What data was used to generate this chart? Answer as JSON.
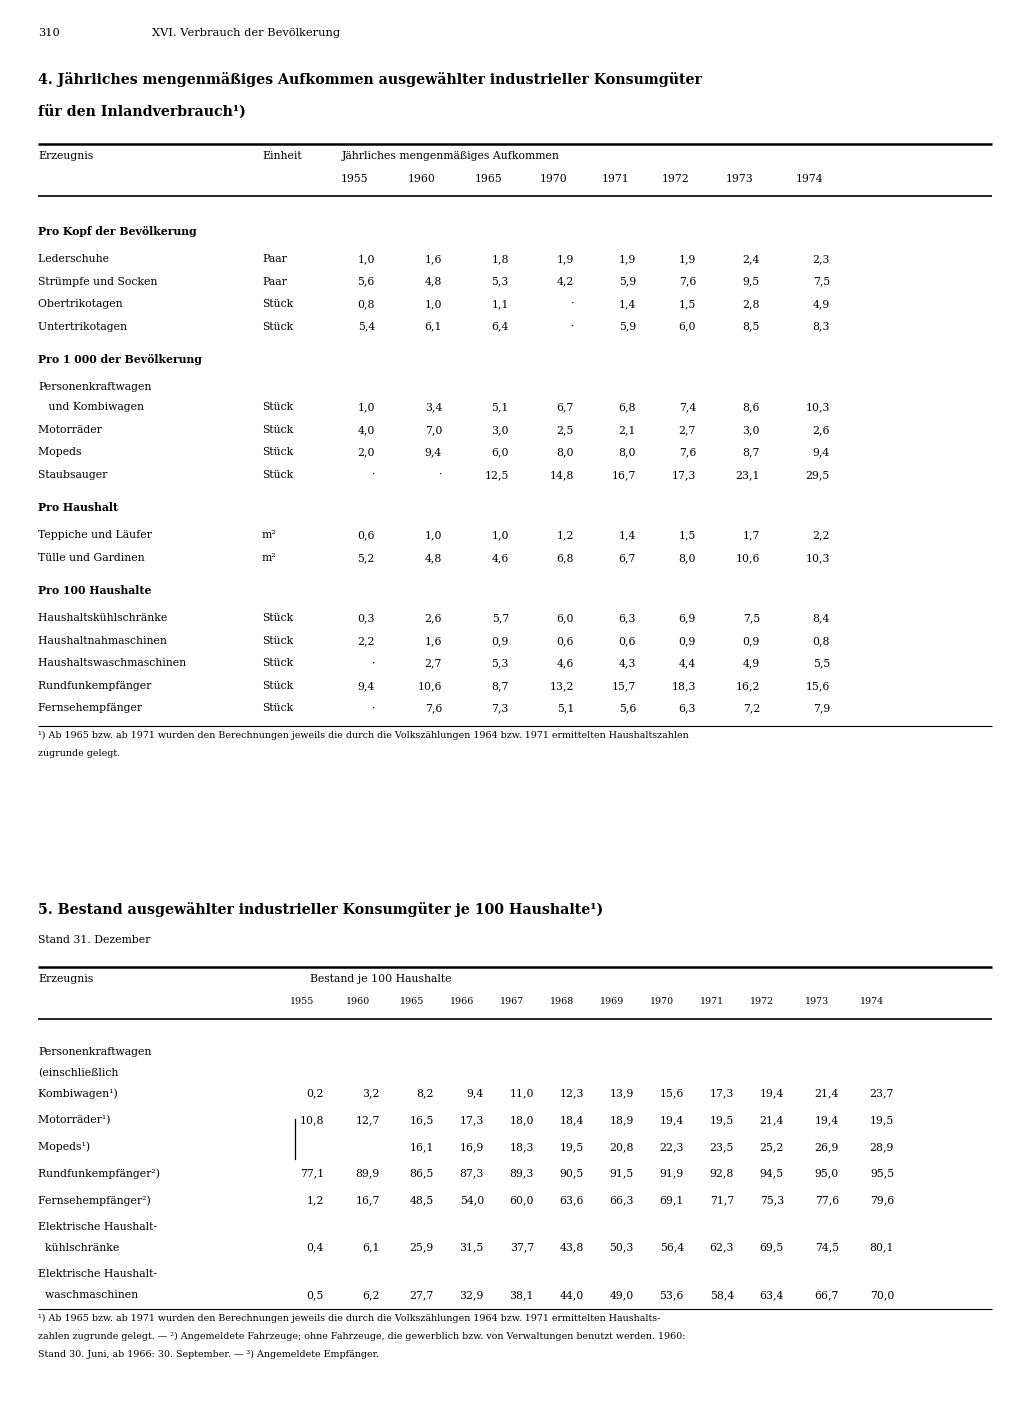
{
  "page_number": "310",
  "page_header": "XVI. Verbrauch der Bevölkerung",
  "section4_title_line1": "4. Jährliches mengenmäßiges Aufkommen ausgewählter industrieller Konsumgüter",
  "section4_title_line2": "für den Inlandverbrauch¹)",
  "section4_col_header_left": "Erzeugnis",
  "section4_col_header_unit": "Einheit",
  "section4_col_header_span": "Jährliches mengenmäßiges Aufkommen",
  "section4_years": [
    "1955",
    "1960",
    "1965",
    "1970",
    "1971",
    "1972",
    "1973",
    "1974"
  ],
  "section4_groups": [
    {
      "group_title": "Pro Kopf der Bevölkerung",
      "rows": [
        {
          "name": "Lederschuhe               ",
          "dots": true,
          "unit": "Paar",
          "values": [
            "1,0",
            "1,6",
            "1,8",
            "1,9",
            "1,9",
            "1,9",
            "2,4",
            "2,3"
          ]
        },
        {
          "name": "Strümpfe und Socken       ",
          "dots": true,
          "unit": "Paar",
          "values": [
            "5,6",
            "4,8",
            "5,3",
            "4,2",
            "5,9",
            "7,6",
            "9,5",
            "7,5"
          ]
        },
        {
          "name": "Obertrikotagen           ",
          "dots": true,
          "unit": "Stück",
          "values": [
            "0,8",
            "1,0",
            "1,1",
            "·",
            "1,4",
            "1,5",
            "2,8",
            "4,9"
          ]
        },
        {
          "name": "Untertrikotagen          ",
          "dots": true,
          "unit": "Stück",
          "values": [
            "5,4",
            "6,1",
            "6,4",
            "·",
            "5,9",
            "6,0",
            "8,5",
            "8,3"
          ]
        }
      ]
    },
    {
      "group_title": "Pro 1 000 der Bevölkerung",
      "rows": [
        {
          "name": "Personenkraftwagen",
          "dots": false,
          "unit": "",
          "values": [
            "",
            "",
            "",
            "",
            "",
            "",
            "",
            ""
          ],
          "multiline_cont": "   und Kombiwagen         ",
          "unit_cont": "Stück",
          "values_cont": [
            "1,0",
            "3,4",
            "5,1",
            "6,7",
            "6,8",
            "7,4",
            "8,6",
            "10,3"
          ]
        },
        {
          "name": "Motorräder                ",
          "dots": true,
          "unit": "Stück",
          "values": [
            "4,0",
            "7,0",
            "3,0",
            "2,5",
            "2,1",
            "2,7",
            "3,0",
            "2,6"
          ]
        },
        {
          "name": "Mopeds                   ",
          "dots": true,
          "unit": "Stück",
          "values": [
            "2,0",
            "9,4",
            "6,0",
            "8,0",
            "8,0",
            "7,6",
            "8,7",
            "9,4"
          ]
        },
        {
          "name": "Staubsauger             ",
          "dots": true,
          "unit": "Stück",
          "values": [
            "·",
            "·",
            "12,5",
            "14,8",
            "16,7",
            "17,3",
            "23,1",
            "29,5"
          ]
        }
      ]
    },
    {
      "group_title": "Pro Haushalt",
      "rows": [
        {
          "name": "Teppiche und Läufer       ",
          "dots": true,
          "unit": "m²",
          "values": [
            "0,6",
            "1,0",
            "1,0",
            "1,2",
            "1,4",
            "1,5",
            "1,7",
            "2,2"
          ]
        },
        {
          "name": "Tülle und Gardinen        ",
          "dots": true,
          "unit": "m²",
          "values": [
            "5,2",
            "4,8",
            "4,6",
            "6,8",
            "6,7",
            "8,0",
            "10,6",
            "10,3"
          ]
        }
      ]
    },
    {
      "group_title": "Pro 100 Haushalte",
      "rows": [
        {
          "name": "Haushaltskühlschränke     ",
          "dots": true,
          "unit": "Stück",
          "values": [
            "0,3",
            "2,6",
            "5,7",
            "6,0",
            "6,3",
            "6,9",
            "7,5",
            "8,4"
          ]
        },
        {
          "name": "Haushaltnahmaschinen     ",
          "dots": true,
          "unit": "Stück",
          "values": [
            "2,2",
            "1,6",
            "0,9",
            "0,6",
            "0,6",
            "0,9",
            "0,9",
            "0,8"
          ]
        },
        {
          "name": "Haushaltswaschmaschinen  ",
          "dots": true,
          "unit": "Stück",
          "values": [
            "·",
            "2,7",
            "5,3",
            "4,6",
            "4,3",
            "4,4",
            "4,9",
            "5,5"
          ]
        },
        {
          "name": "Rundfunkempfänger        ",
          "dots": true,
          "unit": "Stück",
          "values": [
            "9,4",
            "10,6",
            "8,7",
            "13,2",
            "15,7",
            "18,3",
            "16,2",
            "15,6"
          ]
        },
        {
          "name": "Fernsehempfänger         ",
          "dots": true,
          "unit": "Stück",
          "values": [
            "·",
            "7,6",
            "7,3",
            "5,1",
            "5,6",
            "6,3",
            "7,2",
            "7,9"
          ]
        }
      ]
    }
  ],
  "section4_footnote_line1": "¹) Ab 1965 bzw. ab 1971 wurden den Berechnungen jeweils die durch die Volkszählungen 1964 bzw. 1971 ermittelten Haushaltszahlen",
  "section4_footnote_line2": "zugrunde gelegt.",
  "section5_title": "5. Bestand ausgewählter industrieller Konsumgüter je 100 Haushalte¹)",
  "section5_subtitle": "Stand 31. Dezember",
  "section5_col_header_left": "Erzeugnis",
  "section5_col_header_span": "Bestand je 100 Haushalte",
  "section5_years": [
    "1955",
    "1960",
    "1965",
    "1966",
    "1967",
    "1968",
    "1969",
    "1970",
    "1971",
    "1972",
    "1973",
    "1974"
  ],
  "section5_rows": [
    {
      "lines": [
        "Personenkraftwagen",
        "(einschließlich",
        "Kombiwagen¹)          "
      ],
      "values": [
        "0,2",
        "3,2",
        "8,2",
        "9,4",
        "11,0",
        "12,3",
        "13,9",
        "15,6",
        "17,3",
        "19,4",
        "21,4",
        "23,7"
      ],
      "value_line": 2
    },
    {
      "lines": [
        "Motorräder¹)            "
      ],
      "values": [
        "10,8",
        "12,7",
        "16,5",
        "17,3",
        "18,0",
        "18,4",
        "18,9",
        "19,4",
        "19,5",
        "21,4",
        "19,4",
        "19,5"
      ],
      "value_line": 0,
      "bracket_next": true
    },
    {
      "lines": [
        "Mopeds¹)                "
      ],
      "values": [
        "",
        "",
        "16,1",
        "16,9",
        "18,3",
        "19,5",
        "20,8",
        "22,3",
        "23,5",
        "25,2",
        "26,9",
        "28,9"
      ],
      "value_line": 0
    },
    {
      "lines": [
        "Rundfunkempfänger²)      "
      ],
      "values": [
        "77,1",
        "89,9",
        "86,5",
        "87,3",
        "89,3",
        "90,5",
        "91,5",
        "91,9",
        "92,8",
        "94,5",
        "95,0",
        "95,5"
      ],
      "value_line": 0
    },
    {
      "lines": [
        "Fernsehempfänger²)       "
      ],
      "values": [
        "1,2",
        "16,7",
        "48,5",
        "54,0",
        "60,0",
        "63,6",
        "66,3",
        "69,1",
        "71,7",
        "75,3",
        "77,6",
        "79,6"
      ],
      "value_line": 0
    },
    {
      "lines": [
        "Elektrische Haushalt-",
        "  kühlschränke           "
      ],
      "values": [
        "0,4",
        "6,1",
        "25,9",
        "31,5",
        "37,7",
        "43,8",
        "50,3",
        "56,4",
        "62,3",
        "69,5",
        "74,5",
        "80,1"
      ],
      "value_line": 1
    },
    {
      "lines": [
        "Elektrische Haushalt-",
        "  waschmaschinen        "
      ],
      "values": [
        "0,5",
        "6,2",
        "27,7",
        "32,9",
        "38,1",
        "44,0",
        "49,0",
        "53,6",
        "58,4",
        "63,4",
        "66,7",
        "70,0"
      ],
      "value_line": 1
    }
  ],
  "section5_fn1": "¹) Ab 1965 bzw. ab 1971 wurden den Berechnungen jeweils die durch die Volkszählungen 1964 bzw. 1971 ermittelten Haushalts-",
  "section5_fn2": "zahlen zugrunde gelegt. — ²) Angemeldete Fahrzeuge; ohne Fahrzeuge, die gewerblich bzw. von Verwaltungen benutzt werden. 1960:",
  "section5_fn3": "Stand 30. Juni, ab 1966: 30. September. — ³) Angemeldete Empfänger."
}
